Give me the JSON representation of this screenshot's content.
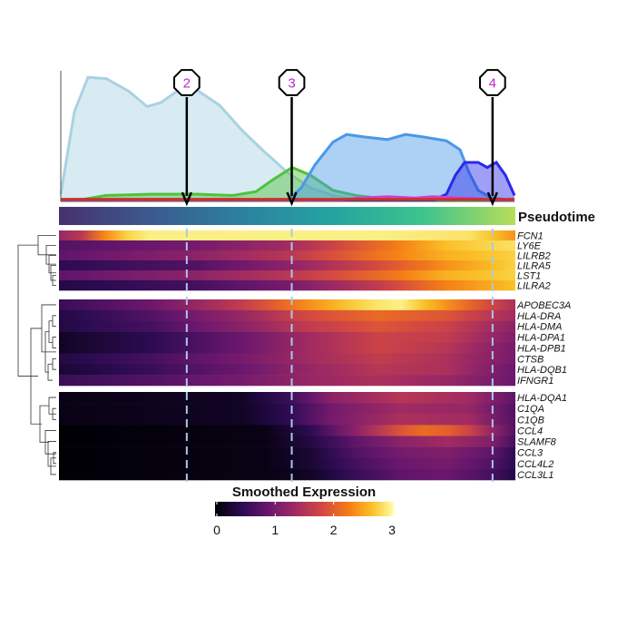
{
  "chart_data": {
    "type": "heatmap",
    "title": "",
    "pseudotime_label": "Pseudotime",
    "legend_title": "Smoothed Expression",
    "legend_ticks": [
      "0",
      "1",
      "2",
      "3"
    ],
    "legend_range": [
      0,
      3.3
    ],
    "markers": [
      {
        "label": "2",
        "pseudotime": 0.28
      },
      {
        "label": "3",
        "pseudotime": 0.51
      },
      {
        "label": "4",
        "pseudotime": 0.95
      }
    ],
    "density": {
      "xlim": [
        0,
        1
      ],
      "series": [
        {
          "name": "light-blue",
          "color": "#a8d2e3",
          "points": [
            [
              0,
              0.05
            ],
            [
              0.03,
              0.7
            ],
            [
              0.06,
              0.97
            ],
            [
              0.1,
              0.96
            ],
            [
              0.15,
              0.86
            ],
            [
              0.19,
              0.74
            ],
            [
              0.22,
              0.77
            ],
            [
              0.26,
              0.87
            ],
            [
              0.3,
              0.87
            ],
            [
              0.35,
              0.75
            ],
            [
              0.4,
              0.55
            ],
            [
              0.45,
              0.38
            ],
            [
              0.5,
              0.22
            ],
            [
              0.55,
              0.1
            ],
            [
              0.6,
              0.04
            ],
            [
              0.65,
              0.01
            ],
            [
              0.7,
              0.0
            ],
            [
              1,
              0
            ]
          ]
        },
        {
          "name": "green",
          "color": "#4fc23a",
          "points": [
            [
              0,
              0
            ],
            [
              0.05,
              0.01
            ],
            [
              0.1,
              0.04
            ],
            [
              0.2,
              0.05
            ],
            [
              0.3,
              0.05
            ],
            [
              0.38,
              0.04
            ],
            [
              0.43,
              0.07
            ],
            [
              0.47,
              0.17
            ],
            [
              0.51,
              0.26
            ],
            [
              0.55,
              0.2
            ],
            [
              0.6,
              0.08
            ],
            [
              0.65,
              0.04
            ],
            [
              0.7,
              0.02
            ],
            [
              0.75,
              0.01
            ],
            [
              0.8,
              0
            ],
            [
              1,
              0
            ]
          ]
        },
        {
          "name": "blue",
          "color": "#4a98e8",
          "points": [
            [
              0,
              0
            ],
            [
              0.5,
              0
            ],
            [
              0.53,
              0.1
            ],
            [
              0.56,
              0.28
            ],
            [
              0.6,
              0.46
            ],
            [
              0.63,
              0.52
            ],
            [
              0.67,
              0.5
            ],
            [
              0.72,
              0.48
            ],
            [
              0.76,
              0.52
            ],
            [
              0.8,
              0.5
            ],
            [
              0.85,
              0.47
            ],
            [
              0.88,
              0.4
            ],
            [
              0.9,
              0.22
            ],
            [
              0.92,
              0.08
            ],
            [
              0.95,
              0.02
            ],
            [
              1,
              0
            ]
          ]
        },
        {
          "name": "dark-blue",
          "color": "#2a2ae8",
          "points": [
            [
              0,
              0
            ],
            [
              0.82,
              0
            ],
            [
              0.85,
              0.05
            ],
            [
              0.87,
              0.2
            ],
            [
              0.89,
              0.3
            ],
            [
              0.92,
              0.3
            ],
            [
              0.94,
              0.26
            ],
            [
              0.96,
              0.3
            ],
            [
              0.98,
              0.2
            ],
            [
              1.0,
              0.04
            ]
          ]
        },
        {
          "name": "magenta",
          "color": "#d040c8",
          "points": [
            [
              0,
              0
            ],
            [
              0.6,
              0
            ],
            [
              0.66,
              0.02
            ],
            [
              0.72,
              0.03
            ],
            [
              0.78,
              0.02
            ],
            [
              0.82,
              0.03
            ],
            [
              0.88,
              0.02
            ],
            [
              0.94,
              0.01
            ],
            [
              1,
              0
            ]
          ]
        },
        {
          "name": "red",
          "color": "#cc3030",
          "points": [
            [
              0,
              0.01
            ],
            [
              0.3,
              0.01
            ],
            [
              0.6,
              0.01
            ],
            [
              1,
              0.01
            ]
          ]
        }
      ]
    },
    "clusters": [
      {
        "genes": [
          {
            "name": "FCN1",
            "profile": [
              [
                0,
                1.4
              ],
              [
                0.06,
                1.8
              ],
              [
                0.12,
                2.9
              ],
              [
                0.2,
                3.2
              ],
              [
                0.4,
                3.2
              ],
              [
                0.7,
                3.2
              ],
              [
                0.92,
                3.1
              ],
              [
                1,
                2.6
              ]
            ]
          },
          {
            "name": "LY6E",
            "profile": [
              [
                0,
                0.8
              ],
              [
                0.3,
                1.1
              ],
              [
                0.5,
                1.5
              ],
              [
                0.7,
                2.3
              ],
              [
                0.85,
                2.9
              ],
              [
                1,
                3.1
              ]
            ]
          },
          {
            "name": "LILRB2",
            "profile": [
              [
                0,
                0.9
              ],
              [
                0.3,
                1.3
              ],
              [
                0.5,
                1.7
              ],
              [
                0.7,
                2.4
              ],
              [
                0.85,
                2.8
              ],
              [
                1,
                3.0
              ]
            ]
          },
          {
            "name": "LILRA5",
            "profile": [
              [
                0,
                0.5
              ],
              [
                0.3,
                0.8
              ],
              [
                0.5,
                1.3
              ],
              [
                0.7,
                2.0
              ],
              [
                0.85,
                2.6
              ],
              [
                1,
                3.0
              ]
            ]
          },
          {
            "name": "LST1",
            "profile": [
              [
                0,
                0.9
              ],
              [
                0.3,
                1.3
              ],
              [
                0.5,
                1.7
              ],
              [
                0.7,
                2.3
              ],
              [
                0.85,
                2.8
              ],
              [
                1,
                3.0
              ]
            ]
          },
          {
            "name": "LILRA2",
            "profile": [
              [
                0,
                0.4
              ],
              [
                0.3,
                0.7
              ],
              [
                0.5,
                1.1
              ],
              [
                0.7,
                1.8
              ],
              [
                0.85,
                2.5
              ],
              [
                1,
                2.9
              ]
            ]
          }
        ]
      },
      {
        "genes": [
          {
            "name": "APOBEC3A",
            "profile": [
              [
                0,
                0.6
              ],
              [
                0.2,
                1.0
              ],
              [
                0.4,
                1.8
              ],
              [
                0.55,
                2.6
              ],
              [
                0.68,
                3.1
              ],
              [
                0.75,
                3.2
              ],
              [
                0.85,
                2.6
              ],
              [
                1,
                1.6
              ]
            ]
          },
          {
            "name": "HLA-DRA",
            "profile": [
              [
                0,
                0.4
              ],
              [
                0.2,
                0.8
              ],
              [
                0.4,
                1.4
              ],
              [
                0.55,
                2.0
              ],
              [
                0.7,
                2.3
              ],
              [
                0.85,
                2.1
              ],
              [
                1,
                1.5
              ]
            ]
          },
          {
            "name": "HLA-DMA",
            "profile": [
              [
                0,
                0.4
              ],
              [
                0.2,
                0.7
              ],
              [
                0.4,
                1.3
              ],
              [
                0.55,
                1.8
              ],
              [
                0.7,
                2.1
              ],
              [
                0.85,
                1.9
              ],
              [
                1,
                1.3
              ]
            ]
          },
          {
            "name": "HLA-DPA1",
            "profile": [
              [
                0,
                0.2
              ],
              [
                0.2,
                0.5
              ],
              [
                0.4,
                1.0
              ],
              [
                0.55,
                1.5
              ],
              [
                0.7,
                1.9
              ],
              [
                0.85,
                1.8
              ],
              [
                1,
                1.2
              ]
            ]
          },
          {
            "name": "HLA-DPB1",
            "profile": [
              [
                0,
                0.2
              ],
              [
                0.2,
                0.5
              ],
              [
                0.4,
                1.0
              ],
              [
                0.55,
                1.5
              ],
              [
                0.7,
                1.9
              ],
              [
                0.85,
                1.7
              ],
              [
                1,
                1.1
              ]
            ]
          },
          {
            "name": "CTSB",
            "profile": [
              [
                0,
                0.4
              ],
              [
                0.2,
                0.7
              ],
              [
                0.4,
                1.1
              ],
              [
                0.55,
                1.5
              ],
              [
                0.7,
                1.8
              ],
              [
                0.85,
                1.6
              ],
              [
                1,
                1.1
              ]
            ]
          },
          {
            "name": "HLA-DQB1",
            "profile": [
              [
                0,
                0.3
              ],
              [
                0.2,
                0.6
              ],
              [
                0.4,
                1.0
              ],
              [
                0.55,
                1.4
              ],
              [
                0.7,
                1.7
              ],
              [
                0.85,
                1.6
              ],
              [
                1,
                1.0
              ]
            ]
          },
          {
            "name": "IFNGR1",
            "profile": [
              [
                0,
                0.6
              ],
              [
                0.2,
                0.8
              ],
              [
                0.4,
                1.1
              ],
              [
                0.55,
                1.4
              ],
              [
                0.7,
                1.6
              ],
              [
                0.85,
                1.4
              ],
              [
                1,
                1.0
              ]
            ]
          }
        ]
      },
      {
        "genes": [
          {
            "name": "HLA-DQA1",
            "profile": [
              [
                0,
                0.1
              ],
              [
                0.4,
                0.2
              ],
              [
                0.5,
                0.6
              ],
              [
                0.6,
                1.3
              ],
              [
                0.75,
                1.7
              ],
              [
                0.9,
                1.5
              ],
              [
                1,
                0.9
              ]
            ]
          },
          {
            "name": "C1QA",
            "profile": [
              [
                0,
                0.1
              ],
              [
                0.4,
                0.2
              ],
              [
                0.5,
                0.5
              ],
              [
                0.6,
                1.1
              ],
              [
                0.75,
                1.5
              ],
              [
                0.9,
                1.4
              ],
              [
                1,
                0.8
              ]
            ]
          },
          {
            "name": "C1QB",
            "profile": [
              [
                0,
                0.1
              ],
              [
                0.4,
                0.2
              ],
              [
                0.5,
                0.5
              ],
              [
                0.6,
                1.1
              ],
              [
                0.75,
                1.6
              ],
              [
                0.9,
                1.5
              ],
              [
                1,
                0.8
              ]
            ]
          },
          {
            "name": "CCL4",
            "profile": [
              [
                0,
                0.0
              ],
              [
                0.45,
                0.1
              ],
              [
                0.55,
                0.5
              ],
              [
                0.65,
                1.3
              ],
              [
                0.75,
                2.1
              ],
              [
                0.82,
                2.4
              ],
              [
                0.9,
                1.9
              ],
              [
                1,
                0.8
              ]
            ]
          },
          {
            "name": "SLAMF8",
            "profile": [
              [
                0,
                0.0
              ],
              [
                0.45,
                0.1
              ],
              [
                0.55,
                0.4
              ],
              [
                0.65,
                0.9
              ],
              [
                0.75,
                1.3
              ],
              [
                0.85,
                1.5
              ],
              [
                0.95,
                1.2
              ],
              [
                1,
                0.7
              ]
            ]
          },
          {
            "name": "CCL3",
            "profile": [
              [
                0,
                0.0
              ],
              [
                0.45,
                0.1
              ],
              [
                0.55,
                0.3
              ],
              [
                0.65,
                0.8
              ],
              [
                0.75,
                1.1
              ],
              [
                0.85,
                1.2
              ],
              [
                0.95,
                0.9
              ],
              [
                1,
                0.5
              ]
            ]
          },
          {
            "name": "CCL4L2",
            "profile": [
              [
                0,
                0.0
              ],
              [
                0.45,
                0.1
              ],
              [
                0.55,
                0.3
              ],
              [
                0.65,
                0.7
              ],
              [
                0.75,
                1.0
              ],
              [
                0.85,
                1.1
              ],
              [
                0.95,
                0.8
              ],
              [
                1,
                0.5
              ]
            ]
          },
          {
            "name": "CCL3L1",
            "profile": [
              [
                0,
                0.0
              ],
              [
                0.45,
                0.1
              ],
              [
                0.55,
                0.2
              ],
              [
                0.65,
                0.6
              ],
              [
                0.75,
                0.9
              ],
              [
                0.85,
                1.0
              ],
              [
                0.95,
                0.7
              ],
              [
                1,
                0.4
              ]
            ]
          }
        ]
      }
    ]
  }
}
